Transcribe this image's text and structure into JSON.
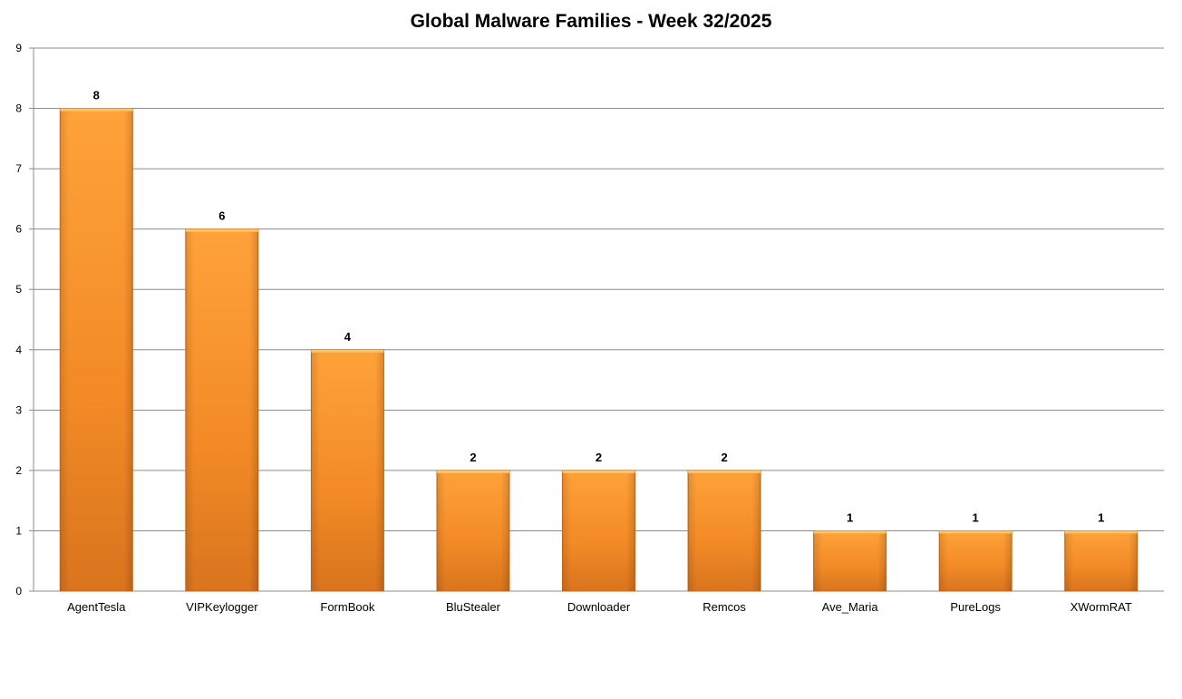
{
  "chart_data": {
    "type": "bar",
    "title": "Global Malware Families - Week 32/2025",
    "categories": [
      "AgentTesla",
      "VIPKeylogger",
      "FormBook",
      "BluStealer",
      "Downloader",
      "Remcos",
      "Ave_Maria",
      "PureLogs",
      "XWormRAT"
    ],
    "values": [
      8,
      6,
      4,
      2,
      2,
      2,
      1,
      1,
      1
    ],
    "ylim": [
      0,
      9
    ],
    "yticks": [
      0,
      1,
      2,
      3,
      4,
      5,
      6,
      7,
      8,
      9
    ],
    "grid": true,
    "data_labels": true,
    "bar_color": "#F7982A",
    "bar_color_dark": "#D9741E"
  }
}
